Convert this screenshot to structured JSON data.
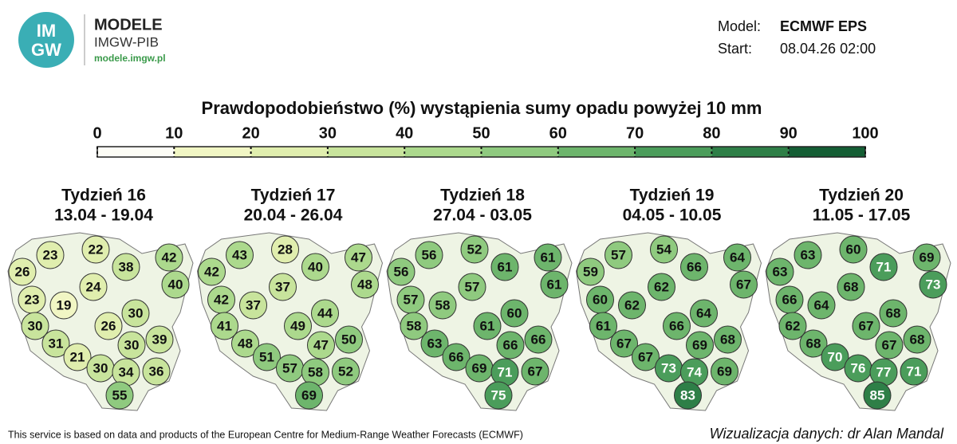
{
  "header": {
    "logo": [
      "IM",
      "GW"
    ],
    "brand": "MODELE",
    "org": "IMGW-PIB",
    "url": "modele.imgw.pl",
    "model_label": "Model:",
    "model": "ECMWF EPS",
    "start_label": "Start:",
    "start": "08.04.26 02:00"
  },
  "title": "Prawdopodobieństwo (%) wystąpienia sumy opadu powyżej 10 mm",
  "colorbar": {
    "ticks": [
      0,
      10,
      20,
      30,
      40,
      50,
      60,
      70,
      80,
      90,
      100
    ],
    "colors": [
      "#fdfdf6",
      "#f1f6c4",
      "#e0eeae",
      "#c8e49c",
      "#acd98d",
      "#8fca7f",
      "#6db56c",
      "#4b9d5b",
      "#2e7f47",
      "#145e34"
    ]
  },
  "maps": [
    {
      "week": "Tydzień 16",
      "dates": "13.04 - 19.04",
      "values": [
        23,
        22,
        38,
        42,
        26,
        24,
        40,
        23,
        19,
        30,
        30,
        26,
        39,
        31,
        30,
        21,
        30,
        34,
        36,
        55
      ]
    },
    {
      "week": "Tydzień 17",
      "dates": "20.04 - 26.04",
      "values": [
        43,
        28,
        40,
        47,
        42,
        37,
        48,
        42,
        37,
        44,
        41,
        49,
        50,
        48,
        47,
        51,
        57,
        58,
        52,
        69
      ]
    },
    {
      "week": "Tydzień 18",
      "dates": "27.04 - 03.05",
      "values": [
        56,
        52,
        61,
        61,
        56,
        57,
        61,
        57,
        58,
        60,
        58,
        61,
        66,
        63,
        66,
        66,
        69,
        71,
        67,
        75
      ]
    },
    {
      "week": "Tydzień 19",
      "dates": "04.05 - 10.05",
      "values": [
        57,
        54,
        66,
        64,
        59,
        62,
        67,
        60,
        62,
        64,
        61,
        66,
        68,
        67,
        69,
        67,
        73,
        74,
        69,
        83
      ]
    },
    {
      "week": "Tydzień 20",
      "dates": "11.05 - 17.05",
      "values": [
        63,
        60,
        71,
        69,
        63,
        68,
        73,
        66,
        64,
        68,
        62,
        67,
        68,
        68,
        67,
        70,
        76,
        77,
        71,
        85
      ]
    }
  ],
  "footer": {
    "source": "This service is based on data and products of the European Centre for Medium-Range Weather Forecasts (ECMWF)",
    "credit": "Wizualizacja danych: dr Alan Mandal"
  }
}
